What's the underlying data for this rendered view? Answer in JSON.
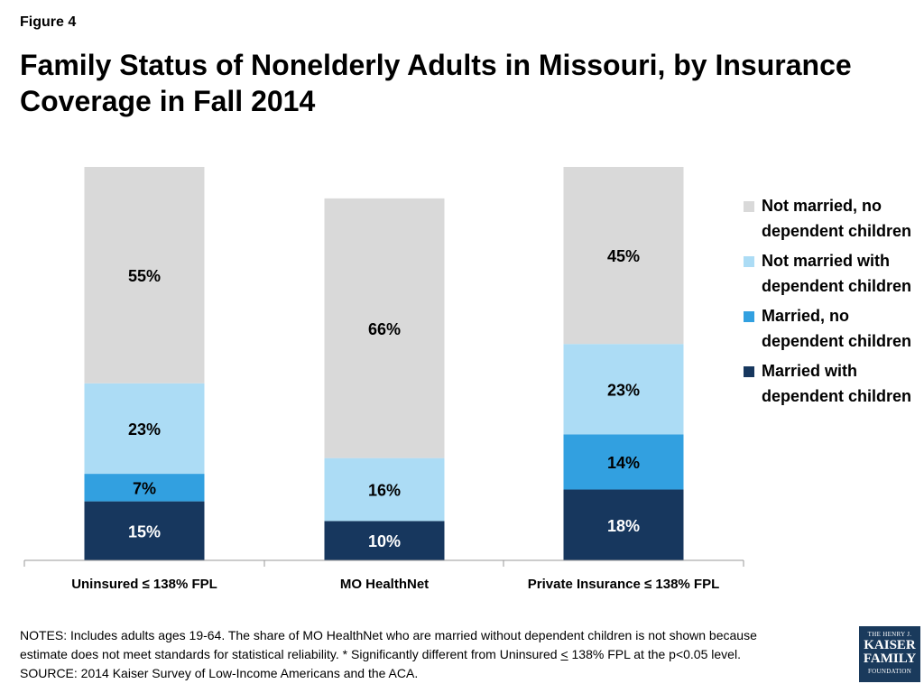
{
  "figure_label": "Figure 4",
  "title": "Family Status of Nonelderly Adults in Missouri, by Insurance Coverage in Fall 2014",
  "chart_data": {
    "type": "bar",
    "stacked": true,
    "categories": [
      "Uninsured ≤ 138% FPL",
      "MO HealthNet",
      "Private Insurance ≤ 138% FPL"
    ],
    "series": [
      {
        "name": "Married with dependent children",
        "values": [
          15,
          10,
          18
        ],
        "labels": [
          "15%",
          "10%",
          "18%"
        ],
        "color": "#17375e"
      },
      {
        "name": "Married, no dependent children",
        "values": [
          7,
          null,
          14
        ],
        "labels": [
          "7%",
          "",
          "14%"
        ],
        "color": "#32a0e0"
      },
      {
        "name": "Not married with dependent children",
        "values": [
          23,
          16,
          23
        ],
        "labels": [
          "23%",
          "16%",
          "23%"
        ],
        "color": "#acdcf5"
      },
      {
        "name": "Not married, no dependent children",
        "values": [
          55,
          66,
          45
        ],
        "labels": [
          "55%",
          "66%",
          "45%"
        ],
        "color": "#d9d9d9"
      }
    ],
    "ylim": [
      0,
      100
    ],
    "legend_position": "right"
  },
  "legend": [
    {
      "label": "Not married, no dependent children",
      "color": "#d9d9d9"
    },
    {
      "label": "Not married with dependent children",
      "color": "#acdcf5"
    },
    {
      "label": "Married, no dependent children",
      "color": "#32a0e0"
    },
    {
      "label": "Married with dependent children",
      "color": "#17375e"
    }
  ],
  "notes": {
    "line1": "NOTES: Includes adults ages 19-64. The share of MO HealthNet who are married without dependent children is not shown because",
    "line2_before": "estimate does not meet standards for statistical reliability. * Significantly different from Uninsured ",
    "line2_symbol": "<",
    "line2_after": " 138% FPL at the p<0.05 level.",
    "source": "SOURCE: 2014 Kaiser Survey of Low-Income Americans and the ACA."
  },
  "logo": {
    "line1": "THE HENRY J.",
    "line2": "KAISER",
    "line3": "FAMILY",
    "line4": "FOUNDATION"
  }
}
